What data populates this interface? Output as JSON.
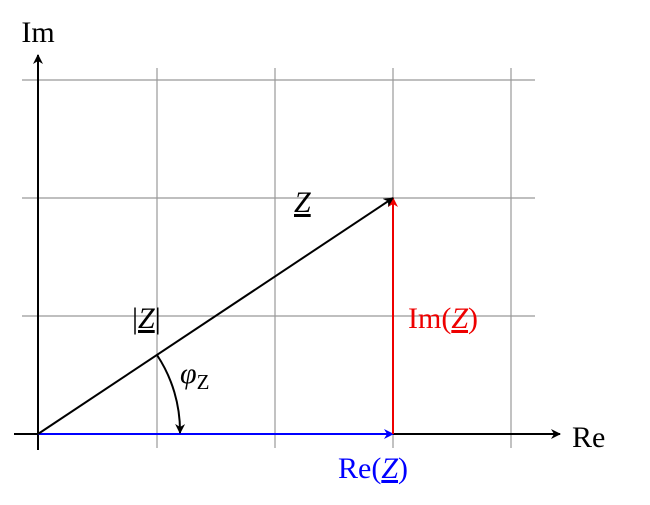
{
  "axes": {
    "imaginary": "Im",
    "real": "Re"
  },
  "labels": {
    "phasor": "Z",
    "magnitude": {
      "prefix": "|",
      "symbol": "Z",
      "suffix": "|"
    },
    "imaginary_part": {
      "prefix": "Im(",
      "symbol": "Z",
      "suffix": ")"
    },
    "real_part": {
      "prefix": "Re(",
      "symbol": "Z",
      "suffix": ")"
    },
    "angle": {
      "symbol": "φ",
      "subscript": "Z"
    }
  }
}
